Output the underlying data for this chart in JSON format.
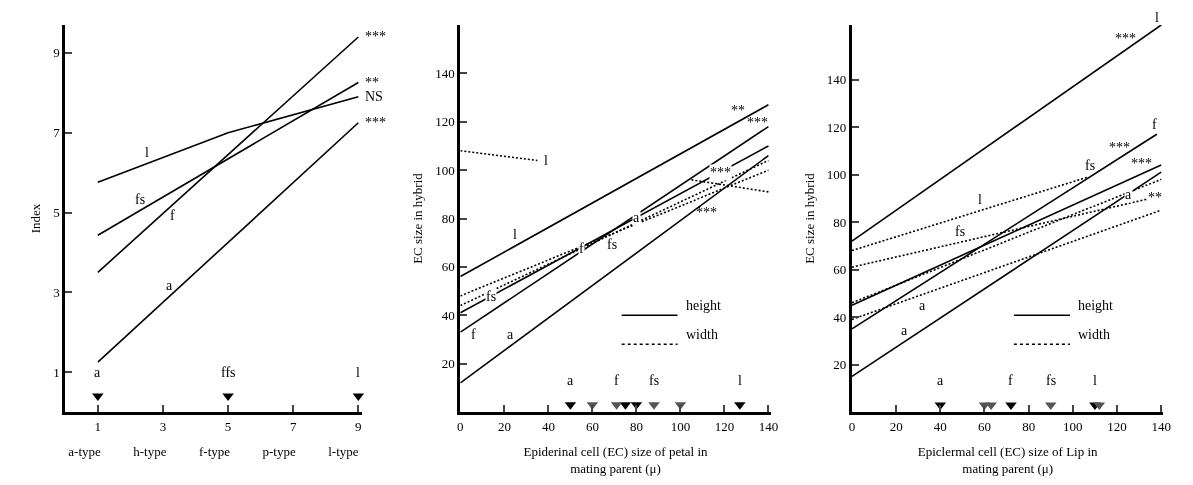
{
  "chart_data": [
    {
      "type": "line",
      "ylabel": "Index",
      "xlabel": "a-type          h-type          f-type          p-type          l-type",
      "xlim": [
        0,
        9.1
      ],
      "ylim": [
        0,
        9.7
      ],
      "xticks": [
        1,
        3,
        5,
        7,
        9
      ],
      "yticks": [
        1,
        3,
        5,
        7,
        9
      ],
      "series": [
        {
          "color": "#000000",
          "line_style": "solid",
          "x": [
            1,
            5,
            9
          ],
          "values": [
            5.76,
            7.0,
            7.9
          ]
        },
        {
          "color": "#000000",
          "line_style": "solid",
          "x": [
            1,
            9
          ],
          "values": [
            4.43,
            8.26
          ]
        },
        {
          "color": "#000000",
          "line_style": "solid",
          "x": [
            1,
            9
          ],
          "values": [
            3.5,
            9.4
          ]
        },
        {
          "color": "#000000",
          "line_style": "solid",
          "x": [
            1,
            9
          ],
          "values": [
            1.25,
            7.25
          ]
        },
        {
          "type": "scatter",
          "color": "#000000",
          "marker": "triangle",
          "x": [
            1,
            5,
            9
          ],
          "values": [
            0.4,
            0.4,
            0.4
          ]
        }
      ],
      "annotations": [
        {
          "text": "l",
          "x": 2.5,
          "y": 6.22
        },
        {
          "text": "fs",
          "x": 2.3,
          "y": 5.05
        },
        {
          "text": "f",
          "x": 3.3,
          "y": 5.2
        },
        {
          "text": "a",
          "x": 3.2,
          "y": 2.9
        },
        {
          "text": "***",
          "x": 9,
          "y": 9.4
        },
        {
          "text": "**",
          "x": 9,
          "y": 8.26
        },
        {
          "text": "NS",
          "x": 9,
          "y": 7.9
        },
        {
          "text": "***",
          "x": 9,
          "y": 7.25
        },
        {
          "text": "a",
          "x": 1,
          "y": 0.4
        },
        {
          "text": "ffs",
          "x": 5,
          "y": 0.4
        },
        {
          "text": "l",
          "x": 9,
          "y": 0.4
        }
      ]
    },
    {
      "type": "line",
      "xlabel": "Epiderinal cell (EC) size of petal in\nmating parent (μ)",
      "ylabel": "EC size in hybrid",
      "xlim": [
        0,
        141
      ],
      "ylim": [
        0,
        160
      ],
      "xticks": [
        0,
        20,
        40,
        60,
        80,
        100,
        120,
        140
      ],
      "yticks": [
        20,
        40,
        60,
        80,
        100,
        120,
        140
      ],
      "series": [
        {
          "color": "#000000",
          "line_style": "solid",
          "x": [
            0,
            140
          ],
          "values": [
            56,
            127
          ]
        },
        {
          "color": "#000000",
          "line_style": "solid",
          "x": [
            0,
            140
          ],
          "values": [
            41,
            110
          ]
        },
        {
          "color": "#000000",
          "line_style": "solid",
          "x": [
            0,
            140
          ],
          "values": [
            33,
            118
          ]
        },
        {
          "color": "#000000",
          "line_style": "solid",
          "x": [
            0,
            140
          ],
          "values": [
            12,
            106
          ]
        },
        {
          "color": "#000000",
          "line_style": "dotted",
          "x": [
            0,
            35
          ],
          "values": [
            108,
            104
          ]
        },
        {
          "color": "#000000",
          "line_style": "dotted",
          "x": [
            105,
            140
          ],
          "values": [
            96,
            91
          ]
        },
        {
          "color": "#000000",
          "line_style": "dotted",
          "x": [
            0,
            140
          ],
          "values": [
            44,
            104
          ]
        },
        {
          "color": "#000000",
          "line_style": "dotted",
          "x": [
            0,
            140
          ],
          "values": [
            48,
            100
          ]
        },
        {
          "type": "scatter",
          "color": "#000000",
          "marker": "triangle",
          "x": [
            50,
            75,
            80,
            127
          ],
          "values": [
            3,
            3,
            3,
            3
          ]
        },
        {
          "type": "scatter",
          "color": "#555555",
          "marker": "triangle",
          "x": [
            60,
            71,
            88,
            100
          ],
          "values": [
            3,
            3,
            3,
            3
          ]
        }
      ],
      "annotations": [
        {
          "text": "l",
          "x": 25,
          "y": 68.7
        },
        {
          "text": "l",
          "x": 35,
          "y": 104
        },
        {
          "text": "f",
          "x": 55,
          "y": 67.6
        },
        {
          "text": "fs",
          "x": 69,
          "y": 73.6
        },
        {
          "text": "fs",
          "x": 14,
          "y": 47.9
        },
        {
          "text": "f",
          "x": 6,
          "y": 36.6
        },
        {
          "text": "a",
          "x": 23,
          "y": 27.4
        },
        {
          "text": "a",
          "x": 80,
          "y": 80.4
        },
        {
          "text": "**",
          "x": 126,
          "y": 119.9
        },
        {
          "text": "***",
          "x": 135,
          "y": 115
        },
        {
          "text": "***",
          "x": 118,
          "y": 99.2
        },
        {
          "text": "***",
          "x": 112,
          "y": 87.2
        },
        {
          "text": "a",
          "x": 50,
          "y": 3
        },
        {
          "text": "f",
          "x": 71,
          "y": 3
        },
        {
          "text": "fs",
          "x": 88,
          "y": 3
        },
        {
          "text": "l",
          "x": 127,
          "y": 3
        },
        "height",
        "width"
      ]
    },
    {
      "type": "line",
      "xlabel": "Epiclermal cell (EC) size of Lip in\nmating parent (μ)",
      "ylabel": "EC size in hybrid",
      "xlim": [
        0,
        141
      ],
      "ylim": [
        0,
        163
      ],
      "xticks": [
        0,
        20,
        40,
        60,
        80,
        100,
        120,
        140
      ],
      "yticks": [
        20,
        40,
        60,
        80,
        100,
        120,
        140
      ],
      "series": [
        {
          "color": "#000000",
          "line_style": "solid",
          "x": [
            0,
            140
          ],
          "values": [
            72,
            163
          ]
        },
        {
          "color": "#000000",
          "line_style": "solid",
          "x": [
            0,
            138
          ],
          "values": [
            35,
            117
          ]
        },
        {
          "color": "#000000",
          "line_style": "solid",
          "x": [
            0,
            140
          ],
          "values": [
            45,
            104
          ]
        },
        {
          "color": "#000000",
          "line_style": "solid",
          "x": [
            0,
            140
          ],
          "values": [
            15,
            101
          ]
        },
        {
          "color": "#000000",
          "line_style": "dotted",
          "x": [
            0,
            107
          ],
          "values": [
            68,
            99
          ]
        },
        {
          "color": "#000000",
          "line_style": "dotted",
          "x": [
            0,
            140
          ],
          "values": [
            61,
            91
          ]
        },
        {
          "color": "#000000",
          "line_style": "dotted",
          "x": [
            0,
            140
          ],
          "values": [
            46,
            98
          ]
        },
        {
          "color": "#000000",
          "line_style": "dotted",
          "x": [
            0,
            140
          ],
          "values": [
            39,
            85
          ]
        },
        {
          "type": "scatter",
          "color": "#000000",
          "marker": "triangle",
          "x": [
            40,
            72,
            110
          ],
          "values": [
            3,
            3,
            3
          ]
        },
        {
          "type": "scatter",
          "color": "#555555",
          "marker": "triangle",
          "x": [
            60,
            63,
            90,
            112
          ],
          "values": [
            3,
            3,
            3,
            3
          ]
        }
      ],
      "annotations": [
        {
          "text": "***",
          "x": 124,
          "y": 152.6
        },
        {
          "text": "l",
          "x": 138,
          "y": 161.7
        },
        {
          "text": "f",
          "x": 137,
          "y": 116.4
        },
        {
          "text": "***",
          "x": 121,
          "y": 106.9
        },
        {
          "text": "fs",
          "x": 108,
          "y": 99.3
        },
        {
          "text": "***",
          "x": 131,
          "y": 100.2
        },
        {
          "text": "a",
          "x": 125,
          "y": 91.8
        },
        {
          "text": "**",
          "x": 137,
          "y": 90.4
        },
        {
          "text": "l",
          "x": 58,
          "y": 84.8
        },
        {
          "text": "fs",
          "x": 49,
          "y": 71.5
        },
        {
          "text": "a",
          "x": 32,
          "y": 49.5
        },
        {
          "text": "a",
          "x": 24,
          "y": 29.7
        },
        {
          "text": "a",
          "x": 40,
          "y": 3
        },
        {
          "text": "f",
          "x": 72,
          "y": 3
        },
        {
          "text": "fs",
          "x": 90,
          "y": 3
        },
        {
          "text": "l",
          "x": 110,
          "y": 3
        },
        "height",
        "width"
      ]
    }
  ]
}
